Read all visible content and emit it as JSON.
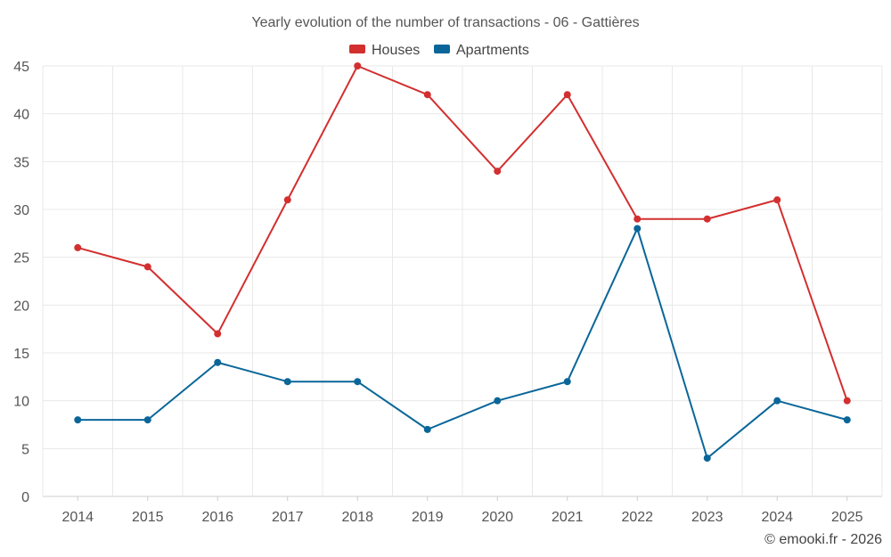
{
  "chart_data": {
    "type": "line",
    "title": "Yearly evolution of the number of transactions - 06 - Gattières",
    "categories": [
      "2014",
      "2015",
      "2016",
      "2017",
      "2018",
      "2019",
      "2020",
      "2021",
      "2022",
      "2023",
      "2024",
      "2025"
    ],
    "series": [
      {
        "name": "Houses",
        "color": "#d32f2f",
        "values": [
          26,
          24,
          17,
          31,
          45,
          42,
          34,
          42,
          29,
          29,
          31,
          10
        ]
      },
      {
        "name": "Apartments",
        "color": "#0a6699",
        "values": [
          8,
          8,
          14,
          12,
          12,
          7,
          10,
          12,
          28,
          4,
          10,
          8
        ]
      }
    ],
    "yticks": [
      0,
      5,
      10,
      15,
      20,
      25,
      30,
      35,
      40,
      45
    ],
    "ylim": [
      0,
      45
    ],
    "xlabel": "",
    "ylabel": "",
    "grid": true,
    "legend_position": "top-center"
  },
  "credit": "© emooki.fr - 2026"
}
